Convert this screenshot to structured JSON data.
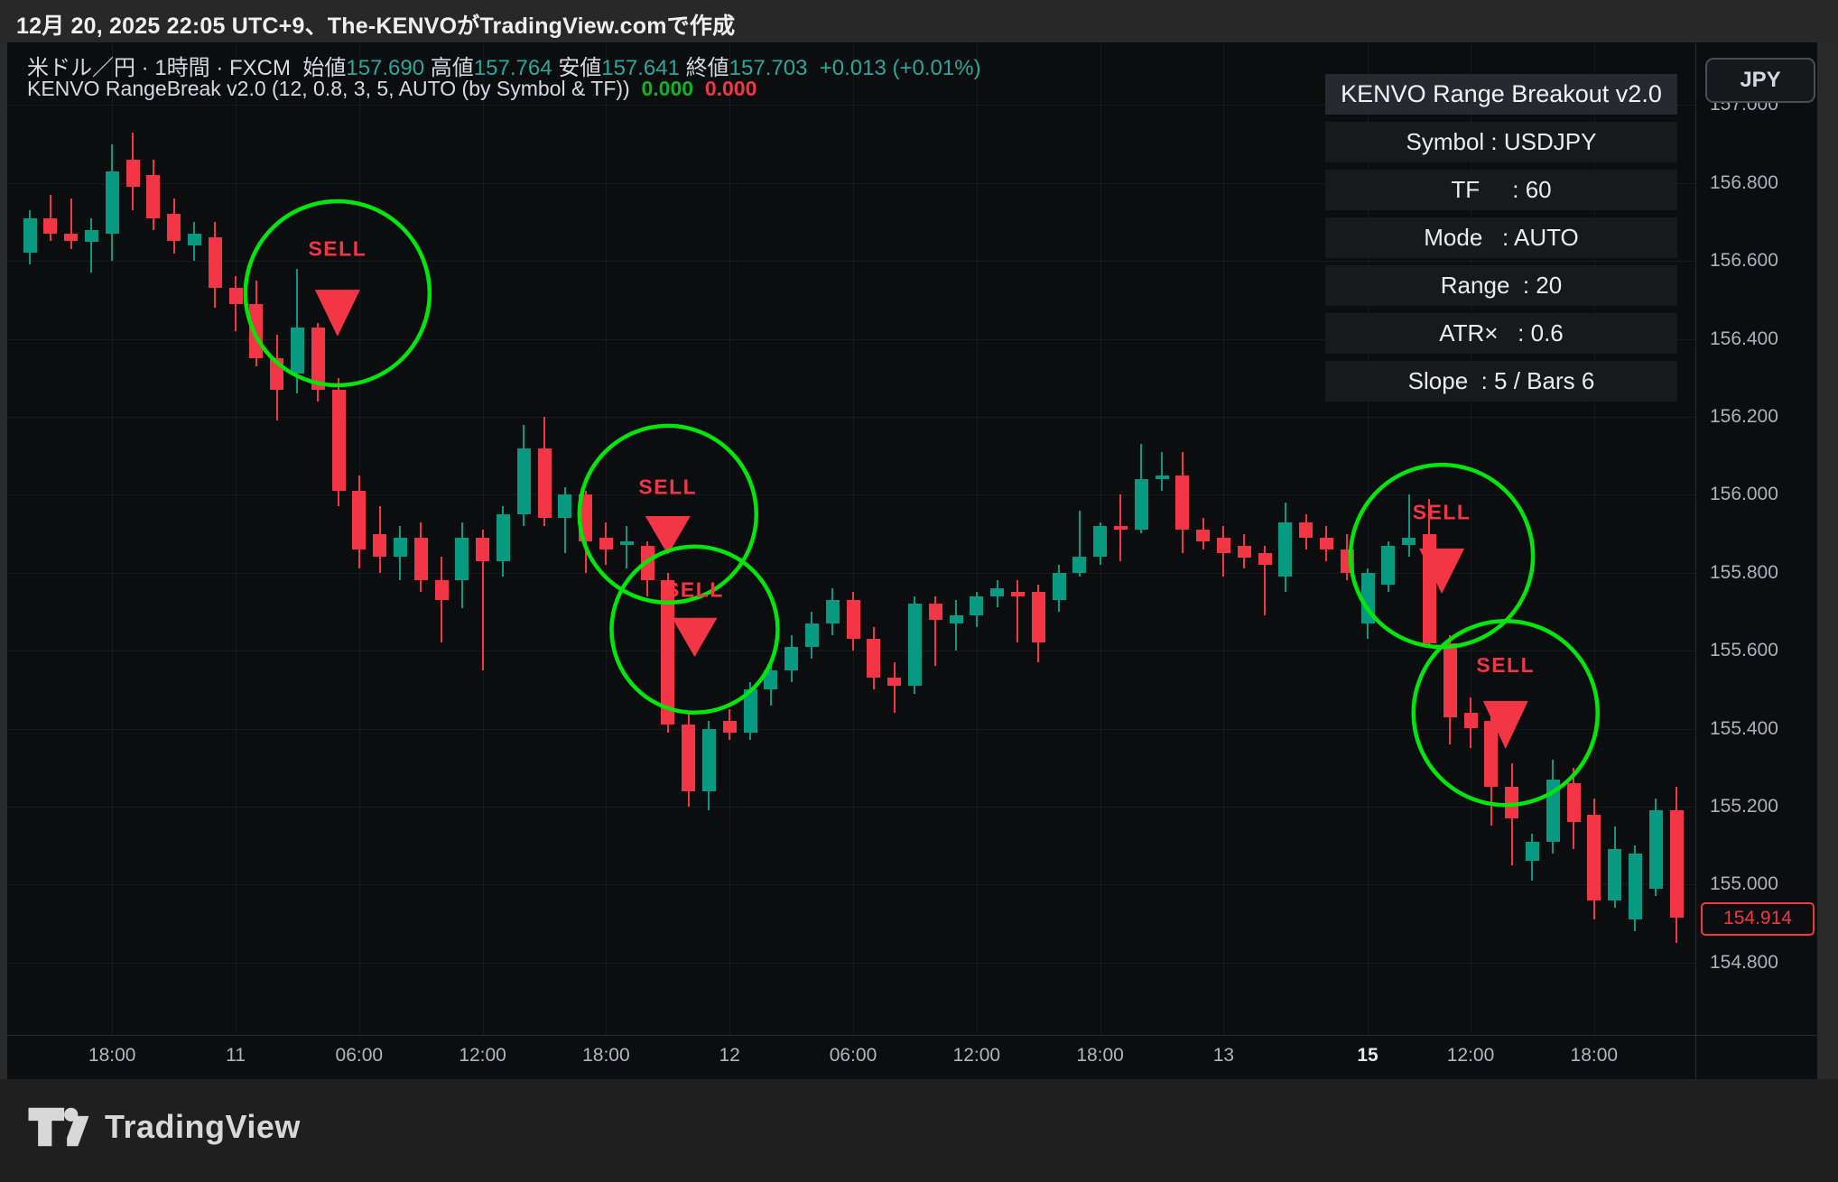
{
  "attribution_bar": {
    "text": "12月 20, 2025 22:05 UTC+9、The-KENVOがTradingView.comで作成"
  },
  "legend": {
    "symbol_line": {
      "title": "米ドル／円 · 1時間 · FXCM",
      "ohlc": [
        {
          "label": "始値",
          "value": "157.690"
        },
        {
          "label": "高値",
          "value": "157.764"
        },
        {
          "label": "安値",
          "value": "157.641"
        },
        {
          "label": "終値",
          "value": "157.703"
        }
      ],
      "change": "+0.013 (+0.01%)"
    },
    "indicator_line": {
      "title": "KENVO RangeBreak v2.0 (12, 0.8, 3, 5, AUTO (by Symbol & TF))",
      "value_green": "0.000",
      "value_red": "0.000"
    }
  },
  "info_panel": {
    "title": "KENVO Range Breakout v2.0",
    "rows": [
      "Symbol : USDJPY",
      "TF     : 60",
      "Mode   : AUTO",
      "Range  : 20",
      "ATR×   : 0.6",
      "Slope  : 5 / Bars 6"
    ]
  },
  "price_axis": {
    "currency_button": "JPY"
  },
  "footer": {
    "brand": "TradingView"
  },
  "colors": {
    "candle_up": "#089981",
    "candle_down": "#f23645",
    "signal_circle": "#00e60b",
    "signal_red": "#f23645",
    "value_teal": "#2aa79c",
    "last_price_red": "#f23645"
  },
  "chart_data": {
    "type": "candlestick",
    "symbol": "USDJPY",
    "timeframe_minutes": 60,
    "exchange": "FXCM",
    "last_price": 154.914,
    "visible_price_range": [
      154.75,
      157.05
    ],
    "y_ticks": [
      "157.000",
      "156.800",
      "156.600",
      "156.400",
      "156.200",
      "156.000",
      "155.800",
      "155.600",
      "155.400",
      "155.200",
      "155.000",
      "154.800"
    ],
    "x_ticks": [
      {
        "label": "18:00",
        "i": 4
      },
      {
        "label": "11",
        "i": 10
      },
      {
        "label": "06:00",
        "i": 16
      },
      {
        "label": "12:00",
        "i": 22
      },
      {
        "label": "18:00",
        "i": 28
      },
      {
        "label": "12",
        "i": 34
      },
      {
        "label": "06:00",
        "i": 40
      },
      {
        "label": "12:00",
        "i": 46
      },
      {
        "label": "18:00",
        "i": 52
      },
      {
        "label": "13",
        "i": 58
      },
      {
        "label": "15",
        "i": 65,
        "strong": true
      },
      {
        "label": "12:00",
        "i": 70
      },
      {
        "label": "18:00",
        "i": 76
      }
    ],
    "candles": [
      [
        156.62,
        156.73,
        156.59,
        156.71
      ],
      [
        156.71,
        156.77,
        156.65,
        156.67
      ],
      [
        156.67,
        156.76,
        156.63,
        156.65
      ],
      [
        156.65,
        156.71,
        156.57,
        156.68
      ],
      [
        156.67,
        156.9,
        156.6,
        156.83
      ],
      [
        156.86,
        156.93,
        156.73,
        156.79
      ],
      [
        156.82,
        156.86,
        156.68,
        156.71
      ],
      [
        156.72,
        156.76,
        156.62,
        156.65
      ],
      [
        156.64,
        156.7,
        156.6,
        156.67
      ],
      [
        156.66,
        156.7,
        156.48,
        156.53
      ],
      [
        156.53,
        156.56,
        156.42,
        156.49
      ],
      [
        156.49,
        156.55,
        156.33,
        156.35
      ],
      [
        156.35,
        156.41,
        156.19,
        156.27
      ],
      [
        156.31,
        156.58,
        156.26,
        156.43
      ],
      [
        156.43,
        156.44,
        156.24,
        156.27
      ],
      [
        156.27,
        156.3,
        155.97,
        156.01
      ],
      [
        156.01,
        156.05,
        155.81,
        155.86
      ],
      [
        155.9,
        155.97,
        155.8,
        155.84
      ],
      [
        155.84,
        155.92,
        155.78,
        155.89
      ],
      [
        155.89,
        155.93,
        155.75,
        155.78
      ],
      [
        155.78,
        155.84,
        155.62,
        155.73
      ],
      [
        155.78,
        155.93,
        155.71,
        155.89
      ],
      [
        155.89,
        155.91,
        155.55,
        155.83
      ],
      [
        155.83,
        155.97,
        155.79,
        155.95
      ],
      [
        155.95,
        156.18,
        155.92,
        156.12
      ],
      [
        156.12,
        156.2,
        155.92,
        155.94
      ],
      [
        155.94,
        156.02,
        155.85,
        156.0
      ],
      [
        156.0,
        156.01,
        155.8,
        155.88
      ],
      [
        155.89,
        155.93,
        155.82,
        155.86
      ],
      [
        155.87,
        155.92,
        155.81,
        155.88
      ],
      [
        155.87,
        155.88,
        155.74,
        155.78
      ],
      [
        155.78,
        155.8,
        155.39,
        155.41
      ],
      [
        155.41,
        155.44,
        155.2,
        155.24
      ],
      [
        155.24,
        155.42,
        155.19,
        155.4
      ],
      [
        155.42,
        155.45,
        155.37,
        155.39
      ],
      [
        155.39,
        155.52,
        155.37,
        155.5
      ],
      [
        155.5,
        155.57,
        155.46,
        155.55
      ],
      [
        155.55,
        155.64,
        155.52,
        155.61
      ],
      [
        155.61,
        155.7,
        155.58,
        155.67
      ],
      [
        155.67,
        155.76,
        155.64,
        155.73
      ],
      [
        155.73,
        155.75,
        155.6,
        155.63
      ],
      [
        155.63,
        155.66,
        155.5,
        155.53
      ],
      [
        155.53,
        155.57,
        155.44,
        155.51
      ],
      [
        155.51,
        155.74,
        155.49,
        155.72
      ],
      [
        155.72,
        155.74,
        155.56,
        155.68
      ],
      [
        155.67,
        155.73,
        155.6,
        155.69
      ],
      [
        155.69,
        155.75,
        155.66,
        155.74
      ],
      [
        155.74,
        155.78,
        155.71,
        155.76
      ],
      [
        155.75,
        155.78,
        155.62,
        155.74
      ],
      [
        155.75,
        155.77,
        155.57,
        155.62
      ],
      [
        155.73,
        155.82,
        155.7,
        155.8
      ],
      [
        155.8,
        155.96,
        155.79,
        155.84
      ],
      [
        155.84,
        155.93,
        155.82,
        155.92
      ],
      [
        155.92,
        156.0,
        155.83,
        155.91
      ],
      [
        155.91,
        156.13,
        155.9,
        156.04
      ],
      [
        156.04,
        156.11,
        156.01,
        156.05
      ],
      [
        156.05,
        156.11,
        155.85,
        155.91
      ],
      [
        155.91,
        155.94,
        155.86,
        155.88
      ],
      [
        155.89,
        155.92,
        155.79,
        155.85
      ],
      [
        155.87,
        155.9,
        155.81,
        155.84
      ],
      [
        155.85,
        155.87,
        155.69,
        155.82
      ],
      [
        155.79,
        155.98,
        155.75,
        155.93
      ],
      [
        155.93,
        155.95,
        155.86,
        155.89
      ],
      [
        155.89,
        155.92,
        155.83,
        155.86
      ],
      [
        155.86,
        155.9,
        155.78,
        155.8
      ],
      [
        155.67,
        155.81,
        155.63,
        155.8
      ],
      [
        155.77,
        155.88,
        155.75,
        155.87
      ],
      [
        155.87,
        156.0,
        155.84,
        155.89
      ],
      [
        155.9,
        155.99,
        155.61,
        155.62
      ],
      [
        155.62,
        155.64,
        155.36,
        155.43
      ],
      [
        155.44,
        155.48,
        155.35,
        155.4
      ],
      [
        155.42,
        155.45,
        155.15,
        155.25
      ],
      [
        155.25,
        155.31,
        155.05,
        155.17
      ],
      [
        155.06,
        155.13,
        155.01,
        155.11
      ],
      [
        155.11,
        155.32,
        155.08,
        155.27
      ],
      [
        155.26,
        155.3,
        155.09,
        155.16
      ],
      [
        155.18,
        155.22,
        154.91,
        154.96
      ],
      [
        154.96,
        155.15,
        154.94,
        155.09
      ],
      [
        154.91,
        155.1,
        154.88,
        155.08
      ],
      [
        154.99,
        155.22,
        154.97,
        155.19
      ],
      [
        155.19,
        155.25,
        154.85,
        154.914
      ]
    ],
    "signals": [
      {
        "label": "SELL",
        "i": 14.95,
        "circle_price": 156.517,
        "radius": 102,
        "text_price": 156.632,
        "tri_top_price": 156.526,
        "tri_tip_price": 156.406
      },
      {
        "label": "SELL",
        "i": 31.0,
        "circle_price": 155.95,
        "radius": 98,
        "text_price": 156.02,
        "tri_top_price": 155.945,
        "tri_tip_price": 155.846
      },
      {
        "label": "SELL",
        "i": 32.3,
        "circle_price": 155.654,
        "radius": 92,
        "text_price": 155.756,
        "tri_top_price": 155.684,
        "tri_tip_price": 155.584
      },
      {
        "label": "SELL",
        "i": 68.6,
        "circle_price": 155.843,
        "radius": 101,
        "text_price": 155.956,
        "tri_top_price": 155.862,
        "tri_tip_price": 155.746
      },
      {
        "label": "SELL",
        "i": 71.7,
        "circle_price": 155.44,
        "radius": 102,
        "text_price": 155.563,
        "tri_top_price": 155.471,
        "tri_tip_price": 155.348
      }
    ]
  }
}
